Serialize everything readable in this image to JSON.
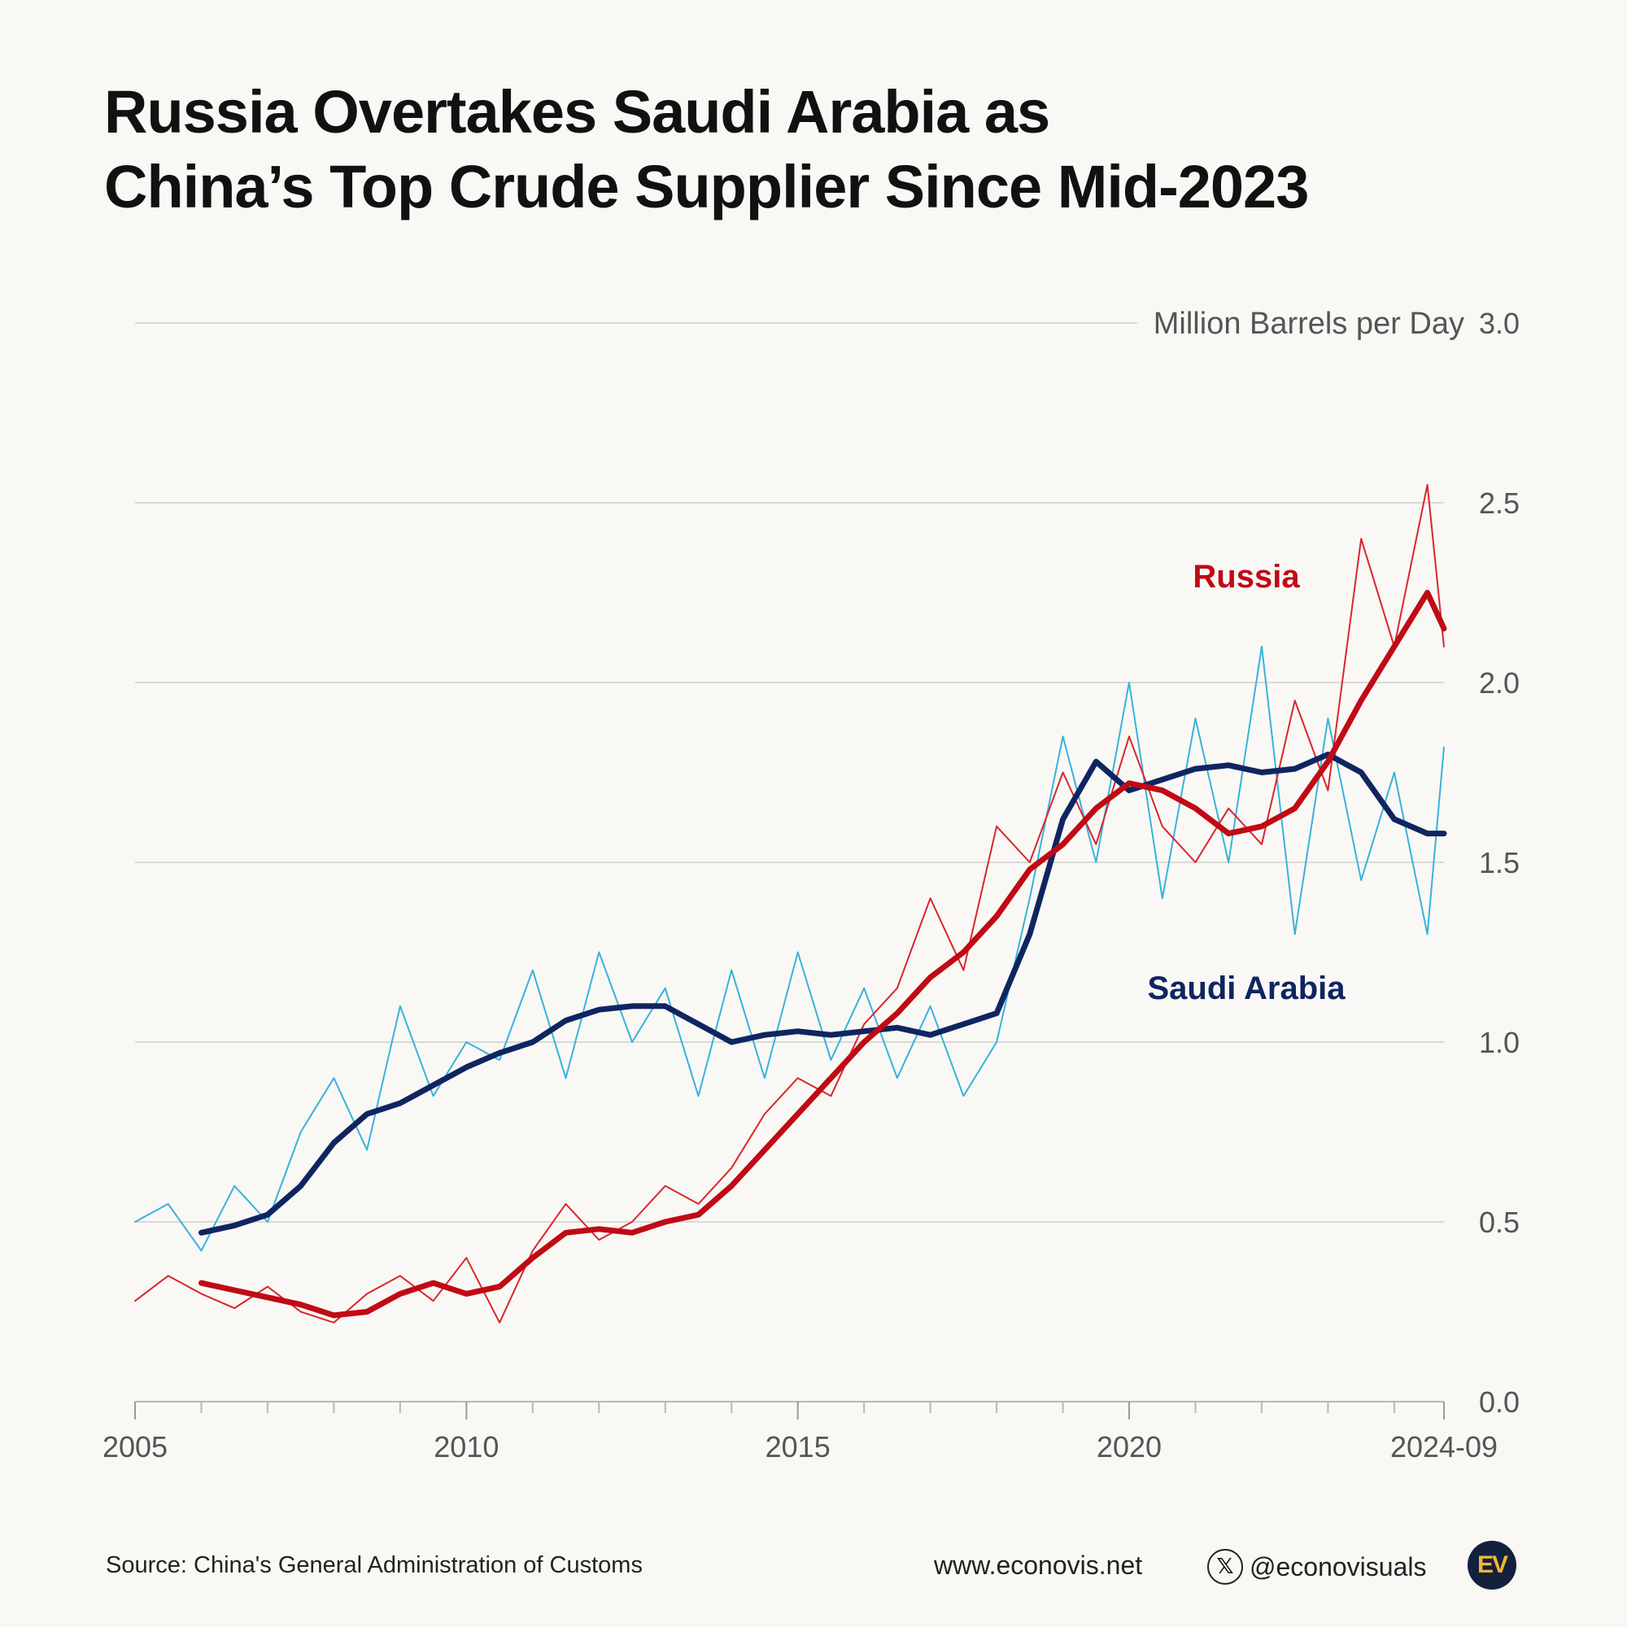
{
  "title_lines": [
    "Russia Overtakes Saudi Arabia as",
    "China’s Top Crude Supplier Since Mid-2023"
  ],
  "footer": {
    "source": "Source: China's General Administration of Customs",
    "website": "www.econovis.net",
    "x_handle": "@econovisuals",
    "x_icon": "x-logo-icon",
    "logo_text": "EV"
  },
  "chart_data": {
    "type": "line",
    "title": "Russia Overtakes Saudi Arabia as China’s Top Crude Supplier Since Mid-2023",
    "unit_label": "Million Barrels per Day",
    "ylim": [
      0,
      3
    ],
    "yticks": [
      0,
      0.5,
      1,
      1.5,
      2,
      2.5,
      3
    ],
    "ytick_labels": [
      "0.0",
      "0.5",
      "1.0",
      "1.5",
      "2.0",
      "2.5",
      "3.0"
    ],
    "xlim": [
      2005.0,
      2024.75
    ],
    "xticks": [
      2005,
      2010,
      2015,
      2020,
      2024.75
    ],
    "xtick_labels": [
      "2005",
      "2010",
      "2015",
      "2020",
      "2024-09"
    ],
    "minor_xticks": [
      2006,
      2007,
      2008,
      2009,
      2011,
      2012,
      2013,
      2014,
      2016,
      2017,
      2018,
      2019,
      2021,
      2022,
      2023,
      2024
    ],
    "grid": "horizontal",
    "colors": {
      "russia_monthly": "#d8262c",
      "russia_avg": "#c00a14",
      "saudi_monthly": "#36b3dd",
      "saudi_avg": "#0f2560",
      "grid": "#d9d9d6",
      "axis_text": "#555555"
    },
    "series": [
      {
        "name": "Russia",
        "kind": "12-month average",
        "x": [
          2006.0,
          2006.5,
          2007.0,
          2007.5,
          2008.0,
          2008.5,
          2009.0,
          2009.5,
          2010.0,
          2010.5,
          2011.0,
          2011.5,
          2012.0,
          2012.5,
          2013.0,
          2013.5,
          2014.0,
          2014.5,
          2015.0,
          2015.5,
          2016.0,
          2016.5,
          2017.0,
          2017.5,
          2018.0,
          2018.5,
          2019.0,
          2019.5,
          2020.0,
          2020.5,
          2021.0,
          2021.5,
          2022.0,
          2022.5,
          2023.0,
          2023.5,
          2024.0,
          2024.5,
          2024.75
        ],
        "values": [
          0.33,
          0.31,
          0.29,
          0.27,
          0.24,
          0.25,
          0.3,
          0.33,
          0.3,
          0.32,
          0.4,
          0.47,
          0.48,
          0.47,
          0.5,
          0.52,
          0.6,
          0.7,
          0.8,
          0.9,
          1.0,
          1.08,
          1.18,
          1.25,
          1.35,
          1.48,
          1.55,
          1.65,
          1.72,
          1.7,
          1.65,
          1.58,
          1.6,
          1.65,
          1.78,
          1.95,
          2.1,
          2.25,
          2.15
        ],
        "label": "Russia"
      },
      {
        "name": "Saudi Arabia",
        "kind": "12-month average",
        "x": [
          2006.0,
          2006.5,
          2007.0,
          2007.5,
          2008.0,
          2008.5,
          2009.0,
          2009.5,
          2010.0,
          2010.5,
          2011.0,
          2011.5,
          2012.0,
          2012.5,
          2013.0,
          2013.5,
          2014.0,
          2014.5,
          2015.0,
          2015.5,
          2016.0,
          2016.5,
          2017.0,
          2017.5,
          2018.0,
          2018.5,
          2019.0,
          2019.5,
          2020.0,
          2020.5,
          2021.0,
          2021.5,
          2022.0,
          2022.5,
          2023.0,
          2023.5,
          2024.0,
          2024.5,
          2024.75
        ],
        "values": [
          0.47,
          0.49,
          0.52,
          0.6,
          0.72,
          0.8,
          0.83,
          0.88,
          0.93,
          0.97,
          1.0,
          1.06,
          1.09,
          1.1,
          1.1,
          1.05,
          1.0,
          1.02,
          1.03,
          1.02,
          1.03,
          1.04,
          1.02,
          1.05,
          1.08,
          1.3,
          1.62,
          1.78,
          1.7,
          1.73,
          1.76,
          1.77,
          1.75,
          1.76,
          1.8,
          1.75,
          1.62,
          1.58,
          1.58
        ],
        "label": "Saudi Arabia"
      },
      {
        "name": "Russia (monthly)",
        "kind": "monthly",
        "x": [
          2005.0,
          2005.5,
          2006.0,
          2006.5,
          2007.0,
          2007.5,
          2008.0,
          2008.5,
          2009.0,
          2009.5,
          2010.0,
          2010.5,
          2011.0,
          2011.5,
          2012.0,
          2012.5,
          2013.0,
          2013.5,
          2014.0,
          2014.5,
          2015.0,
          2015.5,
          2016.0,
          2016.5,
          2017.0,
          2017.5,
          2018.0,
          2018.5,
          2019.0,
          2019.5,
          2020.0,
          2020.5,
          2021.0,
          2021.5,
          2022.0,
          2022.5,
          2023.0,
          2023.5,
          2024.0,
          2024.5,
          2024.75
        ],
        "values": [
          0.28,
          0.35,
          0.3,
          0.26,
          0.32,
          0.25,
          0.22,
          0.3,
          0.35,
          0.28,
          0.4,
          0.22,
          0.42,
          0.55,
          0.45,
          0.5,
          0.6,
          0.55,
          0.65,
          0.8,
          0.9,
          0.85,
          1.05,
          1.15,
          1.4,
          1.2,
          1.6,
          1.5,
          1.75,
          1.55,
          1.85,
          1.6,
          1.5,
          1.65,
          1.55,
          1.95,
          1.7,
          2.4,
          2.1,
          2.55,
          2.1
        ],
        "label": ""
      },
      {
        "name": "Saudi Arabia (monthly)",
        "kind": "monthly",
        "x": [
          2005.0,
          2005.5,
          2006.0,
          2006.5,
          2007.0,
          2007.5,
          2008.0,
          2008.5,
          2009.0,
          2009.5,
          2010.0,
          2010.5,
          2011.0,
          2011.5,
          2012.0,
          2012.5,
          2013.0,
          2013.5,
          2014.0,
          2014.5,
          2015.0,
          2015.5,
          2016.0,
          2016.5,
          2017.0,
          2017.5,
          2018.0,
          2018.5,
          2019.0,
          2019.5,
          2020.0,
          2020.5,
          2021.0,
          2021.5,
          2022.0,
          2022.5,
          2023.0,
          2023.5,
          2024.0,
          2024.5,
          2024.75
        ],
        "values": [
          0.5,
          0.55,
          0.42,
          0.6,
          0.5,
          0.75,
          0.9,
          0.7,
          1.1,
          0.85,
          1.0,
          0.95,
          1.2,
          0.9,
          1.25,
          1.0,
          1.15,
          0.85,
          1.2,
          0.9,
          1.25,
          0.95,
          1.15,
          0.9,
          1.1,
          0.85,
          1.0,
          1.4,
          1.85,
          1.5,
          2.0,
          1.4,
          1.9,
          1.5,
          2.1,
          1.3,
          1.9,
          1.45,
          1.75,
          1.3,
          1.82
        ],
        "label": ""
      }
    ]
  }
}
